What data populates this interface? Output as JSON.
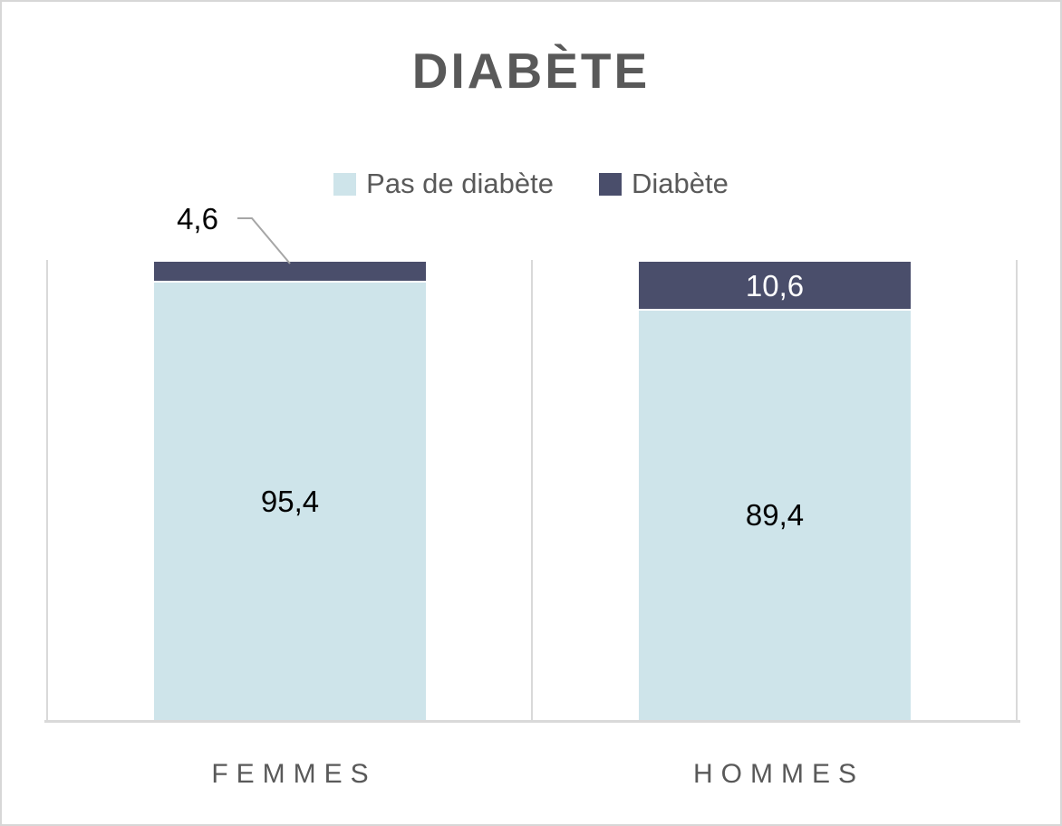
{
  "chart_data": {
    "type": "bar",
    "subtype": "stacked-100-percent-column",
    "title": "DIABÈTE",
    "categories": [
      "FEMMES",
      "HOMMES"
    ],
    "series": [
      {
        "name": "Pas de diabète",
        "values": [
          95.4,
          89.4
        ],
        "labels": [
          "95,4",
          "89,4"
        ],
        "color": "#cee4ea",
        "label_color": "#000000"
      },
      {
        "name": "Diabète",
        "values": [
          4.6,
          10.6
        ],
        "labels": [
          "4,6",
          "10,6"
        ],
        "color": "#4a4e6b",
        "label_color": "#ffffff"
      }
    ],
    "xlabel": "",
    "ylabel": "",
    "ylim": [
      0,
      100
    ],
    "legend_position": "top",
    "grid": "vertical-category-separators",
    "annotations": [
      {
        "text": "4,6",
        "target": "FEMMES / Diabète",
        "type": "callout-leader-line"
      }
    ]
  },
  "colors": {
    "title_text": "#595959",
    "legend_text": "#595959",
    "category_text": "#595959",
    "gridline": "#d9d9d9",
    "leader_line": "#a6a6a6",
    "border": "#d7d7d7",
    "background": "#ffffff"
  }
}
